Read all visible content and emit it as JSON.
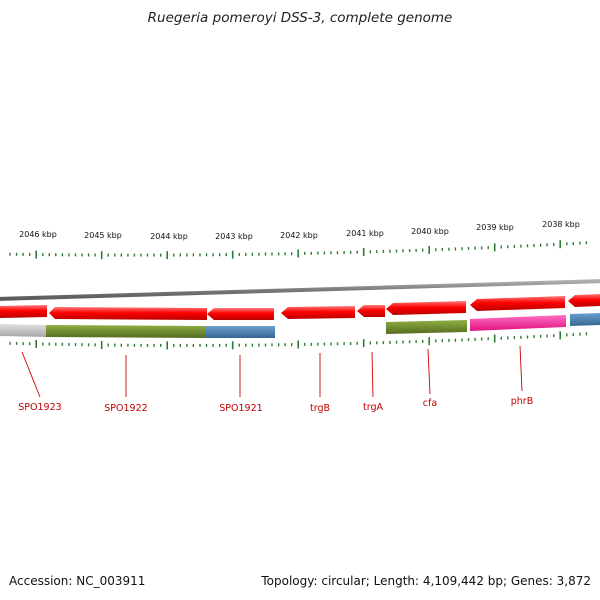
{
  "title": "Ruegeria pomeroyi DSS-3, complete genome",
  "accession": "Accession: NC_003911",
  "summary": "Topology: circular; Length: 4,109,442 bp; Genes: 3,872",
  "scale_labels": [
    "2046 kbp",
    "2045 kbp",
    "2044 kbp",
    "2043 kbp",
    "2042 kbp",
    "2041 kbp",
    "2040 kbp",
    "2039 kbp",
    "2038 kbp"
  ],
  "gene_labels": [
    "SPO1923",
    "SPO1922",
    "SPO1921",
    "trgB",
    "trgA",
    "cfa",
    "phrB"
  ],
  "colors": {
    "backbone": "#8a8a8a",
    "gene_arrow": "#ff0000",
    "category_grey": "#bdbdbd",
    "category_olive": "#6b8e23",
    "category_blue": "#4682b4",
    "category_magenta": "#ff1493",
    "tick": "#2e7d32",
    "label": "#c00000"
  }
}
